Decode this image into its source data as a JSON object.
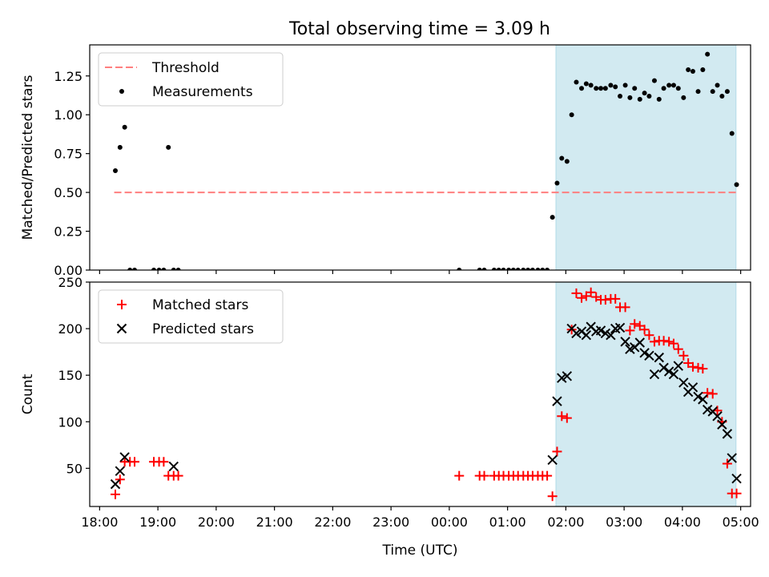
{
  "figure": {
    "title": "Total observing time = 3.09 h"
  },
  "chart_data": [
    {
      "type": "scatter",
      "ylabel": "Matched/Predicted stars",
      "xlabel": "",
      "xlim": [
        17.83,
        29.17
      ],
      "ylim": [
        0,
        1.45
      ],
      "yticks": [
        "0.00",
        "0.25",
        "0.50",
        "0.75",
        "1.00",
        "1.25"
      ],
      "ytick_values": [
        0,
        0.25,
        0.5,
        0.75,
        1.0,
        1.25
      ],
      "shaded_span": {
        "x0": 25.83,
        "x1": 28.92,
        "color": "#add8e6"
      },
      "legend": {
        "position": "upper-left",
        "entries": [
          "Threshold",
          "Measurements"
        ]
      },
      "series": [
        {
          "name": "Threshold",
          "kind": "hline",
          "y": 0.5,
          "x_from": 18.25,
          "x_to": 28.92,
          "color": "#ff7f7f",
          "style": "dashed"
        },
        {
          "name": "Measurements",
          "kind": "points",
          "color": "#000000",
          "x": [
            18.27,
            18.35,
            18.43,
            18.52,
            18.6,
            18.93,
            19.02,
            19.1,
            19.18,
            19.27,
            19.35,
            24.17,
            24.52,
            24.6,
            24.77,
            24.85,
            24.93,
            25.02,
            25.1,
            25.18,
            25.27,
            25.35,
            25.43,
            25.52,
            25.6,
            25.68,
            25.77,
            25.85,
            25.93,
            26.02,
            26.1,
            26.18,
            26.27,
            26.35,
            26.43,
            26.52,
            26.6,
            26.68,
            26.77,
            26.85,
            26.93,
            27.02,
            27.1,
            27.18,
            27.27,
            27.35,
            27.43,
            27.52,
            27.6,
            27.68,
            27.77,
            27.85,
            27.93,
            28.02,
            28.1,
            28.18,
            28.27,
            28.35,
            28.43,
            28.52,
            28.6,
            28.68,
            28.77,
            28.85,
            28.93
          ],
          "y": [
            0.64,
            0.79,
            0.92,
            0,
            0,
            0,
            0,
            0,
            0.79,
            0,
            0,
            0,
            0,
            0,
            0,
            0,
            0,
            0,
            0,
            0,
            0,
            0,
            0,
            0,
            0,
            0,
            0.34,
            0.56,
            0.72,
            0.7,
            1.0,
            1.21,
            1.17,
            1.2,
            1.19,
            1.17,
            1.17,
            1.17,
            1.19,
            1.18,
            1.12,
            1.19,
            1.11,
            1.17,
            1.1,
            1.14,
            1.12,
            1.22,
            1.1,
            1.17,
            1.19,
            1.19,
            1.17,
            1.11,
            1.29,
            1.28,
            1.15,
            1.29,
            1.39,
            1.15,
            1.19,
            1.12,
            1.15,
            0.88,
            0.55
          ]
        }
      ]
    },
    {
      "type": "scatter",
      "ylabel": "Count",
      "xlabel": "Time (UTC)",
      "xlim": [
        17.83,
        29.17
      ],
      "ylim": [
        9,
        250
      ],
      "yticks": [
        "50",
        "100",
        "150",
        "200",
        "250"
      ],
      "ytick_values": [
        50,
        100,
        150,
        200,
        250
      ],
      "xticks": [
        "18:00",
        "19:00",
        "20:00",
        "21:00",
        "22:00",
        "23:00",
        "00:00",
        "01:00",
        "02:00",
        "03:00",
        "04:00",
        "05:00"
      ],
      "xtick_values": [
        18,
        19,
        20,
        21,
        22,
        23,
        24,
        25,
        26,
        27,
        28,
        29
      ],
      "shaded_span": {
        "x0": 25.83,
        "x1": 28.92,
        "color": "#add8e6"
      },
      "legend": {
        "position": "upper-left",
        "entries": [
          "Matched stars",
          "Predicted stars"
        ]
      },
      "series": [
        {
          "name": "Matched stars",
          "marker": "plus",
          "color": "#ff0000",
          "x": [
            18.27,
            18.35,
            18.43,
            18.52,
            18.6,
            18.93,
            19.02,
            19.1,
            19.18,
            19.27,
            19.35,
            24.17,
            24.52,
            24.6,
            24.77,
            24.85,
            24.93,
            25.02,
            25.1,
            25.18,
            25.27,
            25.35,
            25.43,
            25.52,
            25.6,
            25.68,
            25.77,
            25.85,
            25.93,
            26.02,
            26.1,
            26.18,
            26.27,
            26.35,
            26.43,
            26.52,
            26.6,
            26.68,
            26.77,
            26.85,
            26.93,
            27.02,
            27.1,
            27.18,
            27.27,
            27.35,
            27.43,
            27.52,
            27.6,
            27.68,
            27.77,
            27.85,
            27.93,
            28.02,
            28.1,
            28.18,
            28.27,
            28.35,
            28.43,
            28.52,
            28.6,
            28.68,
            28.77,
            28.85,
            28.93
          ],
          "y": [
            22,
            38,
            57,
            57,
            57,
            57,
            57,
            57,
            42,
            42,
            42,
            42,
            42,
            42,
            42,
            42,
            42,
            42,
            42,
            42,
            42,
            42,
            42,
            42,
            42,
            42,
            20,
            68,
            106,
            104,
            199,
            238,
            233,
            235,
            239,
            234,
            231,
            231,
            232,
            232,
            223,
            223,
            198,
            205,
            203,
            199,
            193,
            186,
            187,
            187,
            186,
            184,
            178,
            171,
            163,
            159,
            158,
            157,
            131,
            130,
            112,
            100,
            55,
            23,
            23
          ]
        },
        {
          "name": "Predicted stars",
          "marker": "x",
          "color": "#000000",
          "x": [
            18.27,
            18.35,
            18.43,
            19.27,
            25.77,
            25.85,
            25.93,
            26.02,
            26.1,
            26.18,
            26.27,
            26.35,
            26.43,
            26.52,
            26.6,
            26.68,
            26.77,
            26.85,
            26.93,
            27.02,
            27.1,
            27.18,
            27.27,
            27.35,
            27.43,
            27.52,
            27.6,
            27.68,
            27.77,
            27.85,
            27.93,
            28.02,
            28.1,
            28.18,
            28.27,
            28.35,
            28.43,
            28.52,
            28.6,
            28.68,
            28.77,
            28.85,
            28.93
          ],
          "y": [
            33,
            47,
            62,
            52,
            59,
            122,
            147,
            149,
            200,
            195,
            197,
            193,
            202,
            197,
            198,
            195,
            193,
            200,
            201,
            186,
            178,
            180,
            185,
            174,
            171,
            151,
            169,
            158,
            154,
            151,
            160,
            142,
            132,
            137,
            127,
            124,
            113,
            111,
            106,
            97,
            87,
            61,
            39
          ]
        }
      ]
    }
  ]
}
